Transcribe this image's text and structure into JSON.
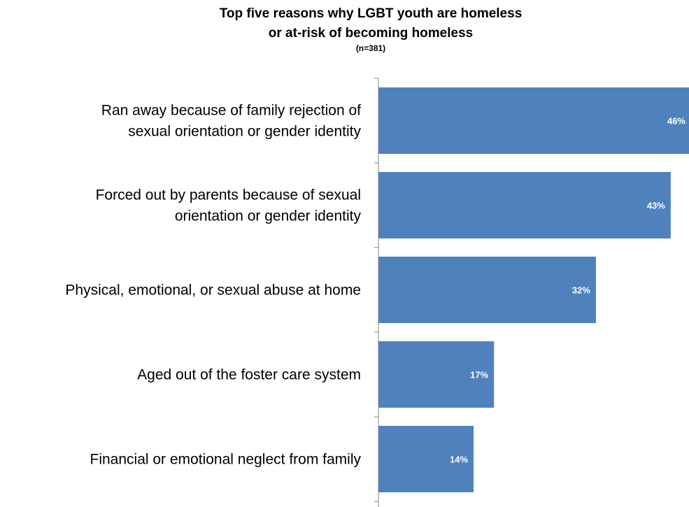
{
  "chart_data": {
    "type": "bar",
    "orientation": "horizontal",
    "title_lines": [
      "Top five reasons why LGBT youth are homeless",
      "or at-risk of becoming homeless"
    ],
    "subtitle": "(n=381)",
    "categories": [
      [
        "Ran away because of family rejection of",
        "sexual orientation or gender identity"
      ],
      [
        "Forced out by parents because of sexual",
        "orientation or gender identity"
      ],
      [
        "Physical, emotional, or sexual abuse at home"
      ],
      [
        "Aged out of the foster care system"
      ],
      [
        "Financial or emotional neglect from family"
      ]
    ],
    "values": [
      46,
      43,
      32,
      17,
      14
    ],
    "value_labels": [
      "46%",
      "43%",
      "32%",
      "17%",
      "14%"
    ],
    "unit": "%",
    "xlim": [
      0,
      46
    ],
    "bar_color": "#4f81bd",
    "grid": false,
    "legend": "none"
  }
}
